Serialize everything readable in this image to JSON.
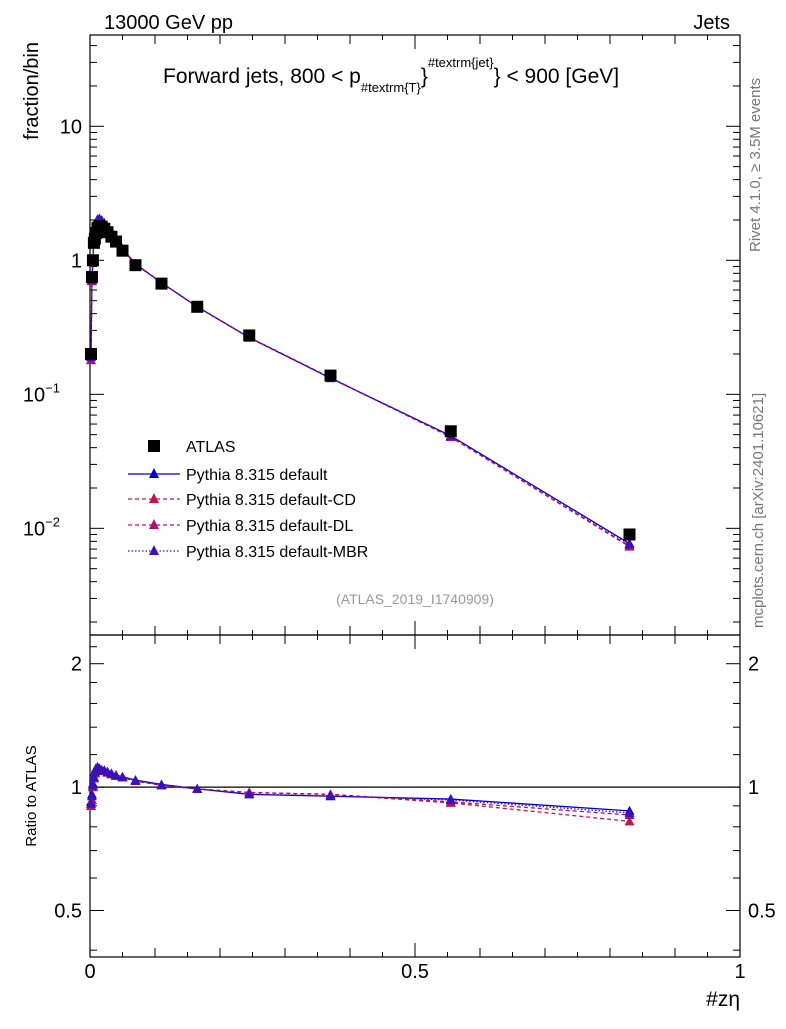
{
  "header": {
    "left": "13000 GeV pp",
    "right": "Jets"
  },
  "side_labels": {
    "rivet": "Rivet 4.1.0, ≥ 3.5M events",
    "mcplots": "mcplots.cern.ch [arXiv:2401.10621]"
  },
  "analysis_id": "(ATLAS_2019_I1740909)",
  "chart_data": [
    {
      "type": "line",
      "panel": "main",
      "title": "Forward jets, 800 < p",
      "title_sub": "#textrm{T}",
      "title_sup": "#textrm{jet}",
      "title_tail": "} < 900 [GeV]",
      "ylabel": "fraction/bin",
      "xlabel": "#zη",
      "yscale": "log",
      "xlim": [
        0,
        1
      ],
      "ylim": [
        0.0016,
        48
      ],
      "y_ticks": [
        {
          "value": 10,
          "label": "10"
        },
        {
          "value": 1,
          "label": "1"
        },
        {
          "value": 0.1,
          "label": "10",
          "exp": "−1"
        },
        {
          "value": 0.01,
          "label": "10",
          "exp": "−2"
        }
      ],
      "x": [
        0.0015,
        0.003,
        0.0045,
        0.006,
        0.0075,
        0.009,
        0.0115,
        0.0145,
        0.018,
        0.022,
        0.027,
        0.033,
        0.04,
        0.05,
        0.07,
        0.11,
        0.165,
        0.245,
        0.37,
        0.555,
        0.83
      ],
      "series": [
        {
          "name": "ATLAS",
          "style": "square",
          "color": "#000000",
          "values": [
            0.2,
            0.75,
            1.0,
            1.35,
            1.45,
            1.6,
            1.75,
            1.8,
            1.78,
            1.72,
            1.62,
            1.5,
            1.38,
            1.18,
            0.92,
            0.67,
            0.45,
            0.275,
            0.138,
            0.053,
            0.009
          ]
        },
        {
          "name": "Pythia 8.315 default",
          "style": "solid",
          "color": "#0000cc",
          "values": [
            0.19,
            0.72,
            1.02,
            1.55,
            1.72,
            1.86,
            2.02,
            2.05,
            1.99,
            1.9,
            1.76,
            1.6,
            1.45,
            1.22,
            0.94,
            0.68,
            0.45,
            0.265,
            0.132,
            0.049,
            0.0077
          ]
        },
        {
          "name": "Pythia 8.315 default-CD",
          "style": "dashed",
          "color": "#c4154b",
          "values": [
            0.18,
            0.7,
            1.0,
            1.52,
            1.7,
            1.84,
            2.0,
            2.04,
            1.98,
            1.89,
            1.75,
            1.59,
            1.44,
            1.21,
            0.93,
            0.68,
            0.45,
            0.266,
            0.133,
            0.048,
            0.0073
          ]
        },
        {
          "name": "Pythia 8.315 default-DL",
          "style": "dashed",
          "color": "#b0106e",
          "values": [
            0.18,
            0.7,
            1.0,
            1.52,
            1.7,
            1.84,
            2.0,
            2.04,
            1.98,
            1.89,
            1.75,
            1.59,
            1.44,
            1.21,
            0.93,
            0.68,
            0.45,
            0.266,
            0.133,
            0.048,
            0.0074
          ]
        },
        {
          "name": "Pythia 8.315 default-MBR",
          "style": "dotted",
          "color": "#3a12b8",
          "values": [
            0.19,
            0.71,
            1.01,
            1.54,
            1.71,
            1.85,
            2.01,
            2.05,
            1.99,
            1.9,
            1.76,
            1.6,
            1.45,
            1.22,
            0.94,
            0.68,
            0.45,
            0.265,
            0.132,
            0.049,
            0.0076
          ]
        }
      ]
    },
    {
      "type": "line",
      "panel": "ratio",
      "ylabel": "Ratio to ATLAS",
      "yscale": "log",
      "xlim": [
        0,
        1
      ],
      "ylim": [
        0.385,
        2.35
      ],
      "reference": 1,
      "y_ticks": [
        {
          "value": 2,
          "label": "2"
        },
        {
          "value": 1,
          "label": "1"
        },
        {
          "value": 0.5,
          "label": "0.5"
        }
      ],
      "x_ticks": [
        {
          "value": 0,
          "label": "0"
        },
        {
          "value": 0.5,
          "label": "0.5"
        },
        {
          "value": 1,
          "label": "1"
        }
      ],
      "x": [
        0.0015,
        0.003,
        0.0045,
        0.006,
        0.0075,
        0.009,
        0.0115,
        0.0145,
        0.018,
        0.022,
        0.027,
        0.033,
        0.04,
        0.05,
        0.07,
        0.11,
        0.165,
        0.245,
        0.37,
        0.555,
        0.83
      ],
      "series": [
        {
          "name": "Pythia 8.315 default",
          "style": "solid",
          "color": "#0000cc",
          "values": [
            0.92,
            0.96,
            1.02,
            1.06,
            1.09,
            1.11,
            1.12,
            1.11,
            1.1,
            1.1,
            1.09,
            1.08,
            1.07,
            1.06,
            1.04,
            1.015,
            0.99,
            0.96,
            0.95,
            0.935,
            0.875
          ]
        },
        {
          "name": "Pythia 8.315 default-CD",
          "style": "dashed",
          "color": "#c4154b",
          "values": [
            0.9,
            0.93,
            1.0,
            1.05,
            1.08,
            1.1,
            1.115,
            1.11,
            1.1,
            1.095,
            1.085,
            1.075,
            1.065,
            1.055,
            1.035,
            1.01,
            0.99,
            0.97,
            0.96,
            0.915,
            0.825
          ]
        },
        {
          "name": "Pythia 8.315 default-DL",
          "style": "dashed",
          "color": "#b0106e",
          "values": [
            0.9,
            0.93,
            1.0,
            1.05,
            1.08,
            1.1,
            1.115,
            1.11,
            1.1,
            1.095,
            1.085,
            1.075,
            1.065,
            1.055,
            1.035,
            1.01,
            0.99,
            0.97,
            0.96,
            0.92,
            0.855
          ]
        },
        {
          "name": "Pythia 8.315 default-MBR",
          "style": "dotted",
          "color": "#3a12b8",
          "values": [
            0.91,
            0.95,
            1.01,
            1.055,
            1.085,
            1.105,
            1.118,
            1.11,
            1.1,
            1.097,
            1.087,
            1.077,
            1.067,
            1.057,
            1.037,
            1.012,
            0.99,
            0.962,
            0.952,
            0.93,
            0.865
          ]
        }
      ]
    }
  ]
}
